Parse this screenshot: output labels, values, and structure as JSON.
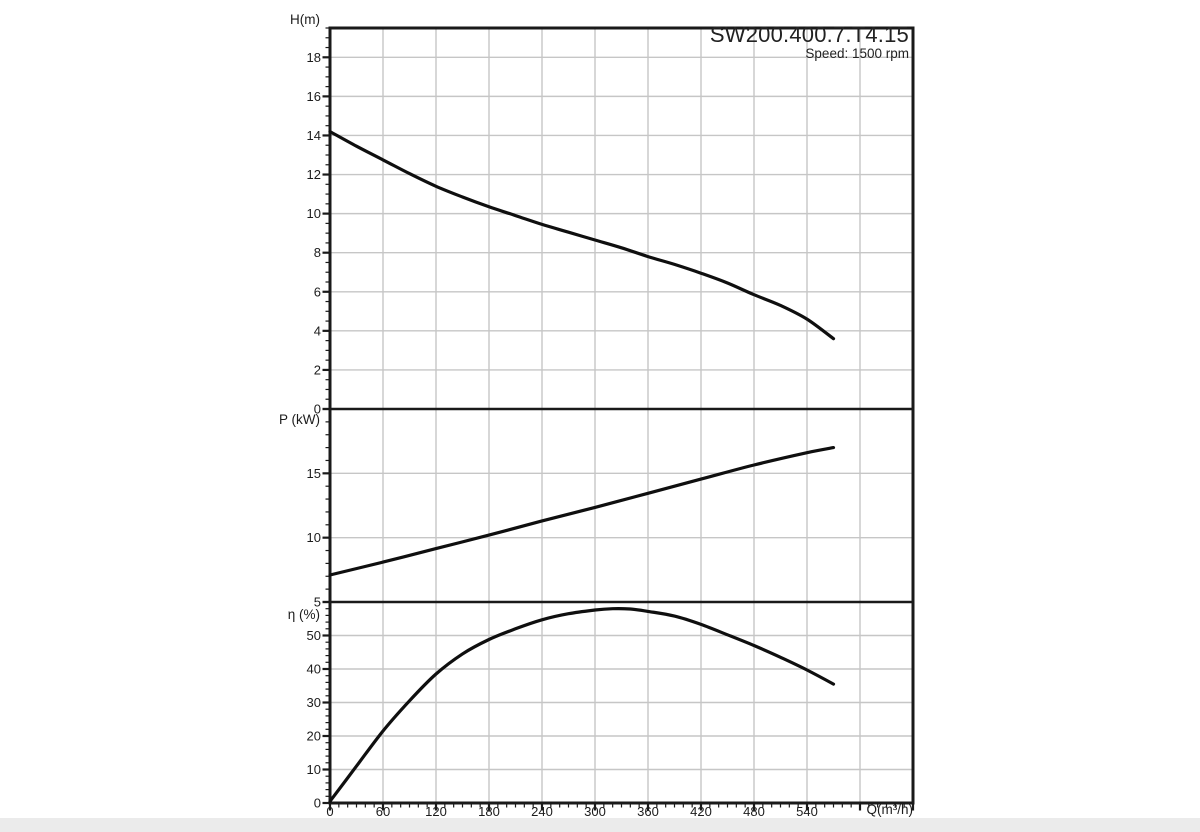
{
  "page": {
    "background_color": "#ebebeb",
    "paper_color": "#ffffff"
  },
  "chart_data": {
    "type": "line",
    "title": "SW200.400.7.T4.15",
    "subtitle": "Speed: 1500 rpm",
    "frame_color": "#1a1a1a",
    "grid_color": "#c6c6c6",
    "curve_color": "#0f0f0f",
    "grid": "on",
    "legend": "none",
    "x_axis": {
      "label": "Q(m³/h)",
      "min": 0,
      "max": 660,
      "major_step": 60,
      "minor_step": 10,
      "tick_labels": [
        "0",
        "60",
        "120",
        "180",
        "240",
        "300",
        "360",
        "420",
        "480",
        "540"
      ]
    },
    "panels": [
      {
        "name": "head",
        "y_label": "H(m)",
        "y_min": 0,
        "y_max": 19.5,
        "y_major_step": 2,
        "y_minor_step": 0.5,
        "y_tick_labels": [
          18,
          16,
          14,
          12,
          10,
          8,
          6,
          4,
          2,
          0
        ],
        "series": {
          "name": "head-curve",
          "points": [
            [
              0,
              14.2
            ],
            [
              30,
              13.45
            ],
            [
              60,
              12.75
            ],
            [
              90,
              12.05
            ],
            [
              120,
              11.4
            ],
            [
              150,
              10.85
            ],
            [
              180,
              10.35
            ],
            [
              210,
              9.9
            ],
            [
              240,
              9.45
            ],
            [
              270,
              9.05
            ],
            [
              300,
              8.65
            ],
            [
              330,
              8.25
            ],
            [
              360,
              7.8
            ],
            [
              390,
              7.4
            ],
            [
              420,
              6.95
            ],
            [
              450,
              6.45
            ],
            [
              480,
              5.85
            ],
            [
              510,
              5.3
            ],
            [
              540,
              4.6
            ],
            [
              570,
              3.6
            ]
          ]
        }
      },
      {
        "name": "power",
        "y_label": "P (kW)",
        "y_min": 5,
        "y_max": 20,
        "y_major_step": 5,
        "y_minor_step": 1,
        "y_tick_labels": [
          15,
          10,
          5
        ],
        "series": {
          "name": "power-curve",
          "points": [
            [
              0,
              7.1
            ],
            [
              60,
              8.1
            ],
            [
              120,
              9.15
            ],
            [
              180,
              10.2
            ],
            [
              240,
              11.3
            ],
            [
              300,
              12.35
            ],
            [
              360,
              13.45
            ],
            [
              420,
              14.55
            ],
            [
              480,
              15.65
            ],
            [
              540,
              16.6
            ],
            [
              570,
              17.0
            ]
          ]
        }
      },
      {
        "name": "efficiency",
        "y_label": "η (%)",
        "y_min": 0,
        "y_max": 60,
        "y_major_step": 10,
        "y_minor_step": 2,
        "y_tick_labels": [
          50,
          40,
          30,
          20,
          10,
          0
        ],
        "series": {
          "name": "efficiency-curve",
          "points": [
            [
              0,
              0.5
            ],
            [
              30,
              11
            ],
            [
              60,
              21.5
            ],
            [
              90,
              30.5
            ],
            [
              120,
              38.5
            ],
            [
              150,
              44.5
            ],
            [
              180,
              48.8
            ],
            [
              210,
              52
            ],
            [
              240,
              54.7
            ],
            [
              270,
              56.5
            ],
            [
              300,
              57.6
            ],
            [
              320,
              58
            ],
            [
              340,
              57.9
            ],
            [
              360,
              57.2
            ],
            [
              390,
              55.8
            ],
            [
              420,
              53.3
            ],
            [
              450,
              50.2
            ],
            [
              480,
              47
            ],
            [
              510,
              43.5
            ],
            [
              540,
              39.7
            ],
            [
              570,
              35.5
            ]
          ]
        }
      }
    ]
  }
}
